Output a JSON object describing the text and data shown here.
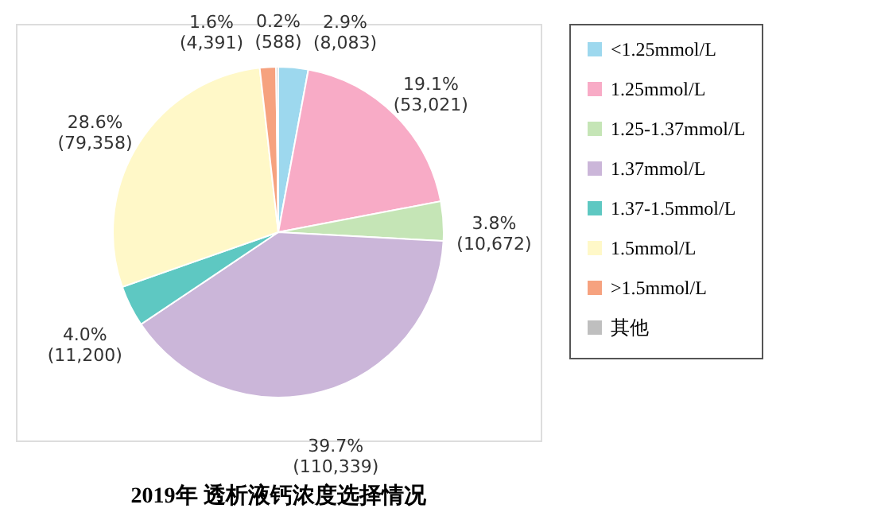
{
  "chart_data": {
    "type": "pie",
    "title": "2019年 透析液钙浓度选择情况",
    "categories": [
      "<1.25mmol/L",
      "1.25mmol/L",
      "1.25-1.37mmol/L",
      "1.37mmol/L",
      "1.37-1.5mmol/L",
      "1.5mmol/L",
      ">1.5mmol/L",
      "其他"
    ],
    "values": [
      8083,
      53021,
      10672,
      110339,
      11200,
      79358,
      4391,
      588
    ],
    "value_labels": [
      "2.9%\n(8,083)",
      "19.1%\n(53,021)",
      "3.8%\n(10,672)",
      "39.7%\n(110,339)",
      "4.0%\n(11,200)",
      "28.6%\n(79,358)",
      "1.6%\n(4,391)",
      "0.2%\n(588)"
    ],
    "colors": [
      "#9dd8ee",
      "#f8abc6",
      "#c5e5b6",
      "#cbb6d9",
      "#5ec8c2",
      "#fff8c8",
      "#f6a27f",
      "#bfbfbf"
    ],
    "legend": "right"
  }
}
